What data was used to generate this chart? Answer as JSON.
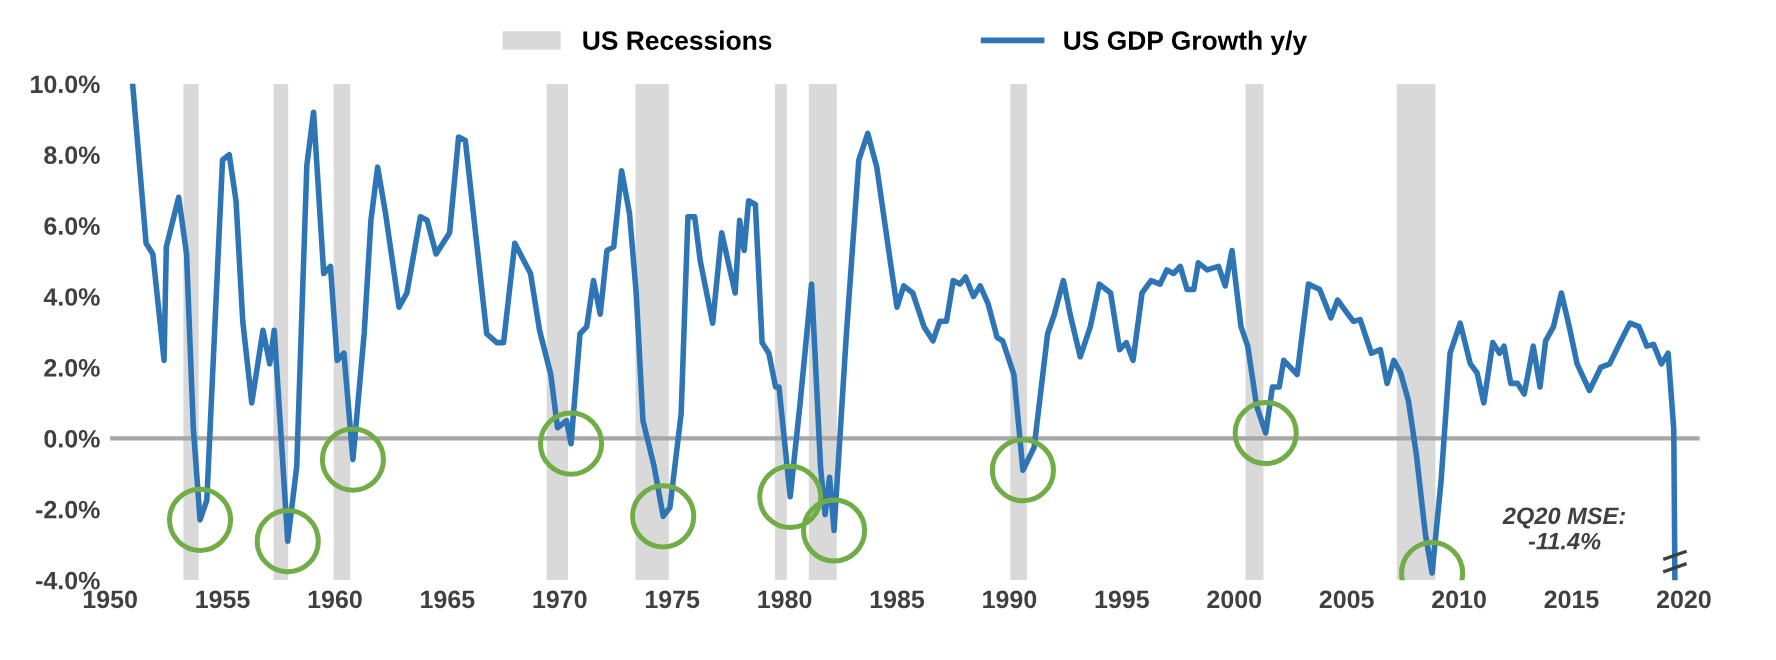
{
  "chart_data": {
    "type": "line",
    "legend": "top",
    "series": [
      {
        "name": "US GDP Growth y/y",
        "color": "#2e75b6",
        "x": [
          1951.0,
          1951.6,
          1951.9,
          1952.4,
          1952.5,
          1953.05,
          1953.4,
          1953.7,
          1954.0,
          1954.3,
          1955.0,
          1955.3,
          1955.6,
          1955.9,
          1956.3,
          1956.8,
          1957.1,
          1957.3,
          1957.6,
          1957.9,
          1958.3,
          1958.75,
          1959.05,
          1959.5,
          1959.8,
          1960.1,
          1960.4,
          1960.8,
          1961.3,
          1961.6,
          1961.9,
          1962.25,
          1962.85,
          1963.2,
          1963.8,
          1964.1,
          1964.5,
          1965.1,
          1965.5,
          1965.8,
          1966.75,
          1967.2,
          1967.5,
          1968.0,
          1968.7,
          1969.1,
          1969.6,
          1969.9,
          1970.3,
          1970.5,
          1970.9,
          1971.2,
          1971.5,
          1971.8,
          1972.1,
          1972.4,
          1972.75,
          1973.1,
          1973.4,
          1973.7,
          1974.2,
          1974.6,
          1974.9,
          1975.4,
          1975.7,
          1976.0,
          1976.25,
          1976.8,
          1977.2,
          1977.8,
          1978.0,
          1978.2,
          1978.4,
          1978.7,
          1979.0,
          1979.3,
          1979.6,
          1979.75,
          1980.25,
          1980.7,
          1981.2,
          1981.6,
          1981.8,
          1982.0,
          1982.2,
          1982.75,
          1983.3,
          1983.7,
          1984.1,
          1984.7,
          1985.0,
          1985.3,
          1985.7,
          1986.2,
          1986.6,
          1986.9,
          1987.2,
          1987.5,
          1987.8,
          1988.05,
          1988.4,
          1988.7,
          1989.05,
          1989.45,
          1989.7,
          1990.2,
          1990.6,
          1991.1,
          1991.7,
          1992.0,
          1992.4,
          1992.7,
          1993.15,
          1993.6,
          1994.0,
          1994.5,
          1994.9,
          1995.2,
          1995.5,
          1995.9,
          1996.3,
          1996.7,
          1997.0,
          1997.3,
          1997.6,
          1997.9,
          1998.2,
          1998.4,
          1998.8,
          1999.3,
          1999.6,
          1999.9,
          2000.3,
          2000.6,
          2001.0,
          2001.4,
          2001.7,
          2002.0,
          2002.2,
          2002.5,
          2002.8,
          2003.3,
          2003.8,
          2004.3,
          2004.6,
          2005.0,
          2005.3,
          2005.6,
          2006.1,
          2006.5,
          2006.8,
          2007.1,
          2007.4,
          2007.75,
          2008.1,
          2008.5,
          2008.8,
          2009.2,
          2009.6,
          2010.05,
          2010.5,
          2010.8,
          2011.1,
          2011.5,
          2011.8,
          2012.0,
          2012.3,
          2012.6,
          2012.9,
          2013.3,
          2013.6,
          2013.85,
          2014.2,
          2014.55,
          2014.9,
          2015.25,
          2015.8,
          2016.3,
          2016.7,
          2017.2,
          2017.6,
          2018.0,
          2018.35,
          2018.65,
          2019.0,
          2019.3,
          2019.55,
          2019.6
        ],
        "values": [
          10.0,
          5.5,
          5.2,
          2.2,
          5.4,
          6.8,
          5.2,
          0.3,
          -2.3,
          -1.75,
          7.85,
          8.0,
          6.7,
          3.3,
          1.0,
          3.05,
          2.1,
          3.05,
          0.1,
          -2.9,
          -0.8,
          7.7,
          9.2,
          4.65,
          4.85,
          2.2,
          2.4,
          -0.6,
          2.95,
          6.15,
          7.65,
          6.35,
          3.7,
          4.1,
          6.25,
          6.15,
          5.2,
          5.8,
          8.5,
          8.4,
          2.95,
          2.7,
          2.7,
          5.5,
          4.65,
          3.05,
          1.8,
          0.3,
          0.5,
          -0.15,
          2.95,
          3.15,
          4.45,
          3.5,
          5.3,
          5.4,
          7.55,
          6.35,
          4.1,
          0.5,
          -0.8,
          -2.2,
          -1.95,
          0.7,
          6.25,
          6.25,
          5.0,
          3.25,
          5.8,
          4.1,
          6.15,
          5.3,
          6.7,
          6.6,
          2.7,
          2.4,
          1.45,
          1.45,
          -1.65,
          1.05,
          4.35,
          -0.8,
          -2.15,
          -1.1,
          -2.6,
          2.95,
          7.85,
          8.6,
          7.65,
          5.0,
          3.7,
          4.3,
          4.1,
          3.15,
          2.75,
          3.3,
          3.3,
          4.45,
          4.35,
          4.55,
          4.0,
          4.3,
          3.8,
          2.85,
          2.75,
          1.8,
          -0.9,
          -0.25,
          2.95,
          3.5,
          4.45,
          3.5,
          2.3,
          3.15,
          4.35,
          4.1,
          2.5,
          2.7,
          2.2,
          4.1,
          4.45,
          4.35,
          4.75,
          4.65,
          4.85,
          4.2,
          4.2,
          4.95,
          4.75,
          4.85,
          4.3,
          5.3,
          3.15,
          2.6,
          0.9,
          0.15,
          1.45,
          1.45,
          2.2,
          2.0,
          1.8,
          4.35,
          4.2,
          3.4,
          3.9,
          3.55,
          3.3,
          3.35,
          2.4,
          2.5,
          1.55,
          2.2,
          1.85,
          1.05,
          -0.45,
          -2.7,
          -3.8,
          -1.2,
          2.4,
          3.25,
          2.1,
          1.85,
          1.0,
          2.7,
          2.4,
          2.6,
          1.55,
          1.55,
          1.25,
          2.6,
          1.45,
          2.75,
          3.15,
          4.1,
          3.15,
          2.1,
          1.35,
          2.0,
          2.1,
          2.75,
          3.25,
          3.15,
          2.6,
          2.65,
          2.1,
          2.4,
          0.25,
          -4.0
        ]
      }
    ],
    "bands": [
      {
        "axis": "x",
        "from": 1953.26,
        "to": 1953.94,
        "label": "US Recessions",
        "color": "#d9d9d9"
      },
      {
        "axis": "x",
        "from": 1957.27,
        "to": 1957.92,
        "color": "#d9d9d9"
      },
      {
        "axis": "x",
        "from": 1959.94,
        "to": 1960.68,
        "color": "#d9d9d9"
      },
      {
        "axis": "x",
        "from": 1969.42,
        "to": 1970.37,
        "color": "#d9d9d9"
      },
      {
        "axis": "x",
        "from": 1973.37,
        "to": 1974.85,
        "color": "#d9d9d9"
      },
      {
        "axis": "x",
        "from": 1979.57,
        "to": 1980.1,
        "color": "#d9d9d9"
      },
      {
        "axis": "x",
        "from": 1981.08,
        "to": 1982.32,
        "color": "#d9d9d9"
      },
      {
        "axis": "x",
        "from": 1990.04,
        "to": 1990.78,
        "color": "#d9d9d9"
      },
      {
        "axis": "x",
        "from": 2000.5,
        "to": 2001.3,
        "color": "#d9d9d9"
      },
      {
        "axis": "x",
        "from": 2007.23,
        "to": 2008.95,
        "color": "#d9d9d9"
      }
    ],
    "ref_lines": [
      {
        "axis": "y",
        "value": 0,
        "color": "#a6a6a6"
      }
    ],
    "annotations": [
      "2Q20 MSE:\n-11.4%"
    ],
    "xlim": [
      1950,
      2020.7
    ],
    "xticks": [
      1950,
      1955,
      1960,
      1965,
      1970,
      1975,
      1980,
      1985,
      1990,
      1995,
      2000,
      2005,
      2010,
      2015,
      2020
    ],
    "ylim": [
      -4,
      10
    ],
    "yticks": [
      {
        "value": 10,
        "label": "10.0%"
      },
      {
        "value": 8,
        "label": "8.0%"
      },
      {
        "value": 6,
        "label": "6.0%"
      },
      {
        "value": 4,
        "label": "4.0%"
      },
      {
        "value": 2,
        "label": "2.0%"
      },
      {
        "value": 0,
        "label": "0.0%"
      },
      {
        "value": -2,
        "label": "-2.0%"
      },
      {
        "value": -4,
        "label": "-4.0%"
      }
    ],
    "grid": false,
    "marker": "none",
    "line_style": "solid"
  }
}
